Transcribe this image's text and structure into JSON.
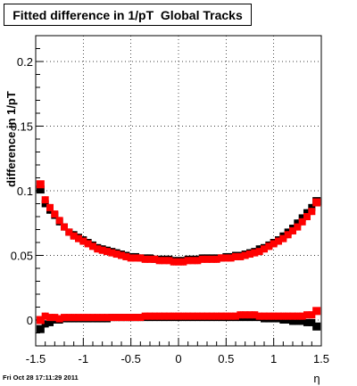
{
  "chart_data": {
    "type": "scatter",
    "title": "Fitted difference in 1/pT  Global Tracks",
    "xlabel": "η",
    "ylabel": "difference in 1/pT",
    "xlim": [
      -1.5,
      1.5
    ],
    "ylim": [
      -0.02,
      0.22
    ],
    "x_ticks": [
      "-1.5",
      "-1",
      "-0.5",
      "0",
      "0.5",
      "1",
      "1.5"
    ],
    "y_ticks": [
      "0",
      "0.05",
      "0.1",
      "0.15",
      "0.2"
    ],
    "grid": true,
    "series": [
      {
        "color": "#000000",
        "marker": "square",
        "curve": {
          "x": [
            -1.45,
            -1.4,
            -1.35,
            -1.3,
            -1.25,
            -1.2,
            -1.15,
            -1.1,
            -1.05,
            -1.0,
            -0.95,
            -0.9,
            -0.85,
            -0.8,
            -0.75,
            -0.7,
            -0.65,
            -0.6,
            -0.55,
            -0.5,
            -0.45,
            -0.4,
            -0.35,
            -0.3,
            -0.25,
            -0.2,
            -0.15,
            -0.1,
            -0.05,
            0.0,
            0.05,
            0.1,
            0.15,
            0.2,
            0.25,
            0.3,
            0.35,
            0.4,
            0.45,
            0.5,
            0.55,
            0.6,
            0.65,
            0.7,
            0.75,
            0.8,
            0.85,
            0.9,
            0.95,
            1.0,
            1.05,
            1.1,
            1.15,
            1.2,
            1.25,
            1.3,
            1.35,
            1.4,
            1.45
          ],
          "y": [
            0.101,
            0.09,
            0.085,
            0.081,
            0.076,
            0.072,
            0.068,
            0.066,
            0.064,
            0.062,
            0.06,
            0.058,
            0.056,
            0.055,
            0.054,
            0.053,
            0.052,
            0.051,
            0.05,
            0.049,
            0.049,
            0.048,
            0.048,
            0.048,
            0.047,
            0.047,
            0.047,
            0.047,
            0.046,
            0.046,
            0.046,
            0.047,
            0.047,
            0.047,
            0.048,
            0.048,
            0.048,
            0.048,
            0.048,
            0.049,
            0.049,
            0.05,
            0.05,
            0.051,
            0.052,
            0.053,
            0.055,
            0.056,
            0.058,
            0.06,
            0.062,
            0.065,
            0.068,
            0.071,
            0.075,
            0.079,
            0.083,
            0.087,
            0.092
          ]
        },
        "flat": {
          "x": [
            -1.45,
            -1.4,
            -1.35,
            -1.3,
            -1.25,
            -1.2,
            -1.15,
            -1.1,
            -1.05,
            -1.0,
            -0.95,
            -0.9,
            -0.85,
            -0.8,
            -0.75,
            -0.7,
            -0.65,
            -0.6,
            -0.55,
            -0.5,
            -0.45,
            -0.4,
            -0.35,
            -0.3,
            -0.25,
            -0.2,
            -0.15,
            -0.1,
            -0.05,
            0.0,
            0.05,
            0.1,
            0.15,
            0.2,
            0.25,
            0.3,
            0.35,
            0.4,
            0.45,
            0.5,
            0.55,
            0.6,
            0.65,
            0.7,
            0.75,
            0.8,
            0.85,
            0.9,
            0.95,
            1.0,
            1.05,
            1.1,
            1.15,
            1.2,
            1.25,
            1.3,
            1.35,
            1.4,
            1.45
          ],
          "y": [
            -0.007,
            -0.003,
            -0.002,
            0.0,
            0.0,
            0.001,
            0.001,
            0.001,
            0.001,
            0.001,
            0.001,
            0.001,
            0.001,
            0.001,
            0.001,
            0.002,
            0.002,
            0.002,
            0.002,
            0.002,
            0.002,
            0.002,
            0.002,
            0.002,
            0.002,
            0.002,
            0.002,
            0.002,
            0.002,
            0.002,
            0.002,
            0.002,
            0.002,
            0.002,
            0.002,
            0.002,
            0.002,
            0.002,
            0.002,
            0.002,
            0.002,
            0.002,
            0.002,
            0.002,
            0.002,
            0.002,
            0.002,
            0.001,
            0.001,
            0.001,
            0.001,
            0.0,
            0.0,
            -0.001,
            -0.001,
            -0.001,
            -0.002,
            -0.002,
            -0.005
          ]
        }
      },
      {
        "color": "#ff0000",
        "marker": "square",
        "curve": {
          "x": [
            -1.45,
            -1.4,
            -1.35,
            -1.3,
            -1.25,
            -1.2,
            -1.15,
            -1.1,
            -1.05,
            -1.0,
            -0.95,
            -0.9,
            -0.85,
            -0.8,
            -0.75,
            -0.7,
            -0.65,
            -0.6,
            -0.55,
            -0.5,
            -0.45,
            -0.4,
            -0.35,
            -0.3,
            -0.25,
            -0.2,
            -0.15,
            -0.1,
            -0.05,
            0.0,
            0.05,
            0.1,
            0.15,
            0.2,
            0.25,
            0.3,
            0.35,
            0.4,
            0.45,
            0.5,
            0.55,
            0.6,
            0.65,
            0.7,
            0.75,
            0.8,
            0.85,
            0.9,
            0.95,
            1.0,
            1.05,
            1.1,
            1.15,
            1.2,
            1.25,
            1.3,
            1.35,
            1.4,
            1.45
          ],
          "y": [
            0.105,
            0.093,
            0.087,
            0.082,
            0.077,
            0.072,
            0.068,
            0.065,
            0.063,
            0.061,
            0.059,
            0.057,
            0.055,
            0.054,
            0.053,
            0.052,
            0.051,
            0.05,
            0.049,
            0.048,
            0.048,
            0.048,
            0.047,
            0.047,
            0.047,
            0.046,
            0.046,
            0.046,
            0.045,
            0.045,
            0.045,
            0.046,
            0.046,
            0.046,
            0.047,
            0.047,
            0.047,
            0.047,
            0.048,
            0.048,
            0.048,
            0.049,
            0.049,
            0.05,
            0.051,
            0.052,
            0.053,
            0.055,
            0.057,
            0.059,
            0.061,
            0.063,
            0.066,
            0.069,
            0.072,
            0.076,
            0.08,
            0.084,
            0.091
          ]
        },
        "flat": {
          "x": [
            -1.45,
            -1.4,
            -1.35,
            -1.3,
            -1.25,
            -1.2,
            -1.15,
            -1.1,
            -1.05,
            -1.0,
            -0.95,
            -0.9,
            -0.85,
            -0.8,
            -0.75,
            -0.7,
            -0.65,
            -0.6,
            -0.55,
            -0.5,
            -0.45,
            -0.4,
            -0.35,
            -0.3,
            -0.25,
            -0.2,
            -0.15,
            -0.1,
            -0.05,
            0.0,
            0.05,
            0.1,
            0.15,
            0.2,
            0.25,
            0.3,
            0.35,
            0.4,
            0.45,
            0.5,
            0.55,
            0.6,
            0.65,
            0.7,
            0.75,
            0.8,
            0.85,
            0.9,
            0.95,
            1.0,
            1.05,
            1.1,
            1.15,
            1.2,
            1.25,
            1.3,
            1.35,
            1.4,
            1.45
          ],
          "y": [
            0.0,
            0.003,
            0.002,
            0.002,
            0.001,
            0.002,
            0.002,
            0.002,
            0.002,
            0.002,
            0.002,
            0.002,
            0.002,
            0.002,
            0.002,
            0.002,
            0.002,
            0.002,
            0.002,
            0.002,
            0.002,
            0.002,
            0.003,
            0.003,
            0.003,
            0.003,
            0.003,
            0.003,
            0.003,
            0.003,
            0.003,
            0.003,
            0.003,
            0.003,
            0.003,
            0.003,
            0.003,
            0.003,
            0.003,
            0.003,
            0.003,
            0.003,
            0.004,
            0.004,
            0.004,
            0.004,
            0.003,
            0.003,
            0.003,
            0.003,
            0.003,
            0.003,
            0.003,
            0.003,
            0.003,
            0.003,
            0.004,
            0.004,
            0.007
          ]
        }
      }
    ]
  },
  "footer": {
    "timestamp": "Fri Oct 28 17:11:29 2011"
  }
}
